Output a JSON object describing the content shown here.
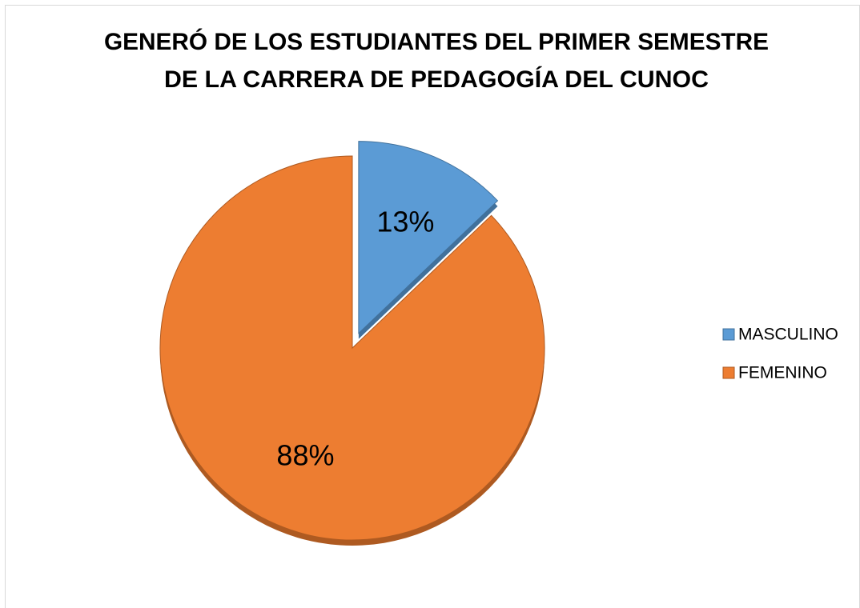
{
  "chart_data": {
    "type": "pie",
    "title": [
      "GENERÓ DE LOS ESTUDIANTES DEL PRIMER SEMESTRE",
      "DE LA CARRERA DE PEDAGOGÍA DEL CUNOC"
    ],
    "categories": [
      "MASCULINO",
      "FEMENINO"
    ],
    "values": [
      13,
      88
    ],
    "value_labels": [
      "13%",
      "88%"
    ],
    "colors": [
      "#5b9bd5",
      "#ed7d31"
    ],
    "exploded": [
      true,
      false
    ],
    "legend": "right"
  }
}
